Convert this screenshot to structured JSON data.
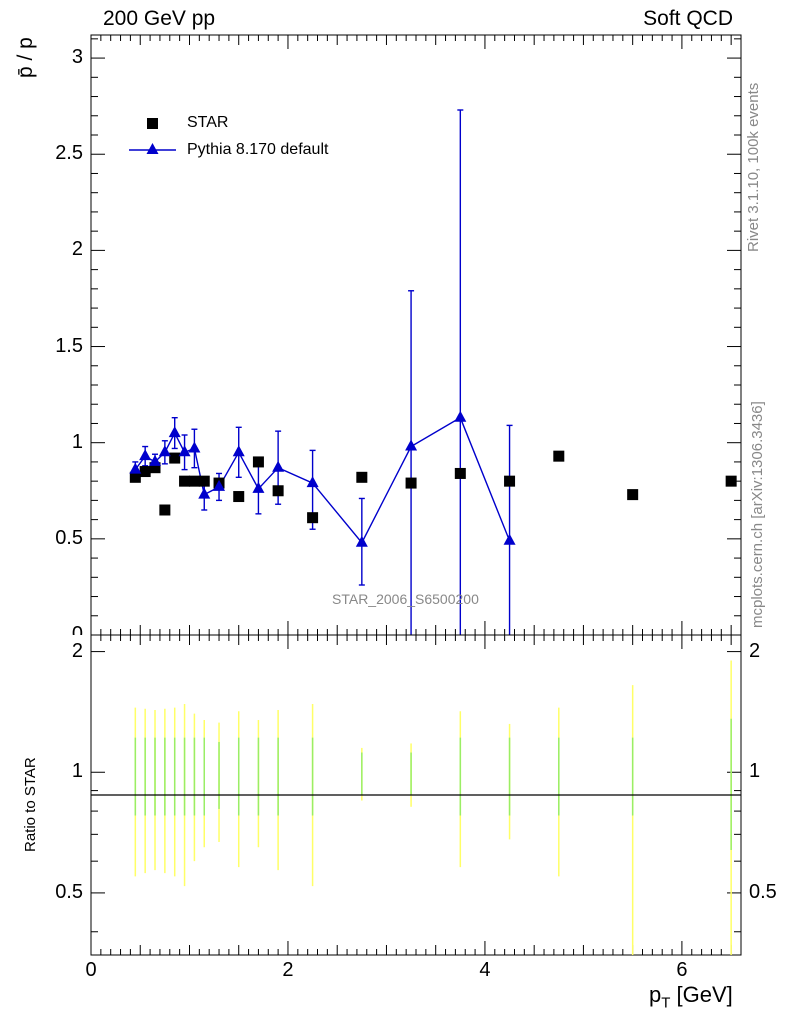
{
  "header": {
    "left": "200 GeV pp",
    "right": "Soft QCD"
  },
  "side_text": {
    "rivet": "Rivet 3.1.10,  100k events",
    "mcplots": "mcplots.cern.ch [arXiv:1306.3436]"
  },
  "chart_data": {
    "type": "scatter",
    "title": "",
    "analysis_label": "STAR_2006_S6500200",
    "xlabel": "p_T [GeV]",
    "xlabel_main": "p",
    "xlabel_sub": "T",
    "xlabel_unit": " [GeV]",
    "ylabel": "p̄ / p",
    "ratio_ylabel": "Ratio to STAR",
    "xlim": [
      0,
      6.6
    ],
    "ylim": [
      0,
      3.12
    ],
    "ratio_ylim": [
      0.35,
      2.2
    ],
    "x_ticks": [
      "0",
      "2",
      "4",
      "6"
    ],
    "y_ticks": [
      "0.5",
      "1",
      "1.5",
      "2",
      "2.5",
      "3"
    ],
    "y_bottom_tick": "0",
    "ratio_ticks": [
      "0.5",
      "1",
      "2"
    ],
    "legend": {
      "position": "top-left",
      "entries": [
        "STAR",
        "Pythia 8.170 default"
      ]
    },
    "series": [
      {
        "name": "STAR",
        "marker": "square",
        "color": "#000000",
        "x": [
          0.45,
          0.55,
          0.65,
          0.75,
          0.85,
          0.95,
          1.05,
          1.15,
          1.3,
          1.5,
          1.7,
          1.9,
          2.25,
          2.75,
          3.25,
          3.75,
          4.25,
          4.75,
          5.5,
          6.5
        ],
        "y": [
          0.82,
          0.85,
          0.87,
          0.65,
          0.92,
          0.8,
          0.8,
          0.8,
          0.79,
          0.72,
          0.9,
          0.75,
          0.61,
          0.82,
          0.79,
          0.84,
          0.8,
          0.93,
          0.73,
          0.8
        ]
      },
      {
        "name": "Pythia 8.170 default",
        "marker": "triangle",
        "color": "#0000cc",
        "x": [
          0.45,
          0.55,
          0.65,
          0.75,
          0.85,
          0.95,
          1.05,
          1.15,
          1.3,
          1.5,
          1.7,
          1.9,
          2.25,
          2.75,
          3.25,
          3.75,
          4.25
        ],
        "y": [
          0.86,
          0.93,
          0.9,
          0.95,
          1.05,
          0.95,
          0.97,
          0.73,
          0.77,
          0.95,
          0.76,
          0.87,
          0.79,
          0.48,
          0.98,
          1.13,
          0.49
        ],
        "err_lo": [
          0.04,
          0.05,
          0.04,
          0.06,
          0.08,
          0.09,
          0.1,
          0.08,
          0.07,
          0.13,
          0.13,
          0.19,
          0.24,
          0.22,
          0.98,
          1.13,
          0.49
        ],
        "err_hi": [
          0.04,
          0.05,
          0.04,
          0.06,
          0.08,
          0.09,
          0.1,
          0.08,
          0.07,
          0.13,
          0.13,
          0.19,
          0.17,
          0.23,
          0.81,
          1.6,
          0.6
        ]
      }
    ],
    "ratio_bands": {
      "x": [
        0.45,
        0.55,
        0.65,
        0.75,
        0.85,
        0.95,
        1.05,
        1.15,
        1.3,
        1.5,
        1.7,
        1.9,
        2.25,
        2.75,
        3.25,
        3.75,
        4.25,
        4.75,
        5.5,
        6.5
      ],
      "stat": [
        0.22,
        0.22,
        0.22,
        0.22,
        0.22,
        0.22,
        0.22,
        0.22,
        0.19,
        0.22,
        0.22,
        0.22,
        0.22,
        0.12,
        0.12,
        0.22,
        0.22,
        0.22,
        0.22,
        0.36
      ],
      "total": [
        0.45,
        0.44,
        0.43,
        0.44,
        0.45,
        0.48,
        0.4,
        0.35,
        0.33,
        0.42,
        0.35,
        0.43,
        0.48,
        0.15,
        0.18,
        0.42,
        0.32,
        0.45,
        0.65,
        0.9
      ],
      "stat_color": "#99ee66",
      "total_color": "#ffff66"
    }
  }
}
